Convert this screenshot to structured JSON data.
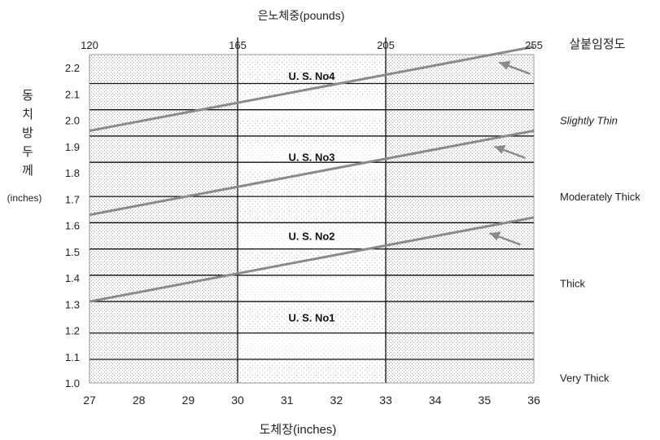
{
  "chart_data": {
    "type": "line",
    "top_title": "은노체중(pounds)",
    "top_right_label": "살붙임정도",
    "ylabel_chars": [
      "동",
      "치",
      "방",
      "두",
      "께"
    ],
    "ylabel_unit": "(inches)",
    "xlabel": "도체장(inches)",
    "x_ticks": [
      "27",
      "28",
      "29",
      "30",
      "31",
      "32",
      "33",
      "34",
      "35",
      "36"
    ],
    "top_ticks": [
      {
        "x": 27,
        "label": "120"
      },
      {
        "x": 30,
        "label": "165"
      },
      {
        "x": 33,
        "label": "205"
      },
      {
        "x": 36,
        "label": "255"
      }
    ],
    "y_ticks": [
      "1.0",
      "1.1",
      "1.2",
      "1.3",
      "1.4",
      "1.5",
      "1.6",
      "1.7",
      "1.8",
      "1.9",
      "2.0",
      "2.1",
      "2.2"
    ],
    "xlim": [
      27,
      36
    ],
    "ylim": [
      1.0,
      2.25
    ],
    "weight_lines_x": [
      30,
      33
    ],
    "grades": [
      {
        "label": "U. S. No4",
        "y": 2.17
      },
      {
        "label": "U. S. No3",
        "y": 1.86
      },
      {
        "label": "U. S. No2",
        "y": 1.56
      },
      {
        "label": "U. S. No1",
        "y": 1.25
      }
    ],
    "series": [
      {
        "name": "Slightly Thin",
        "x": [
          27,
          36
        ],
        "y": [
          1.96,
          2.28
        ],
        "arrow_tip": [
          35.3,
          2.22
        ],
        "label_y": 2.0
      },
      {
        "name": "Moderately Thick",
        "x": [
          27,
          36
        ],
        "y": [
          1.64,
          1.96
        ],
        "arrow_tip": [
          35.2,
          1.9
        ],
        "label_y": 1.71
      },
      {
        "name": "Thick",
        "x": [
          27,
          36
        ],
        "y": [
          1.31,
          1.63
        ],
        "arrow_tip": [
          35.1,
          1.57
        ],
        "label_y": 1.38
      },
      {
        "name": "Very Thick",
        "label_y": 1.02
      }
    ],
    "colors": {
      "shade": "#c4c4c4",
      "line": "#8a8a8a",
      "grid": "#111111",
      "text": "#222222"
    }
  }
}
